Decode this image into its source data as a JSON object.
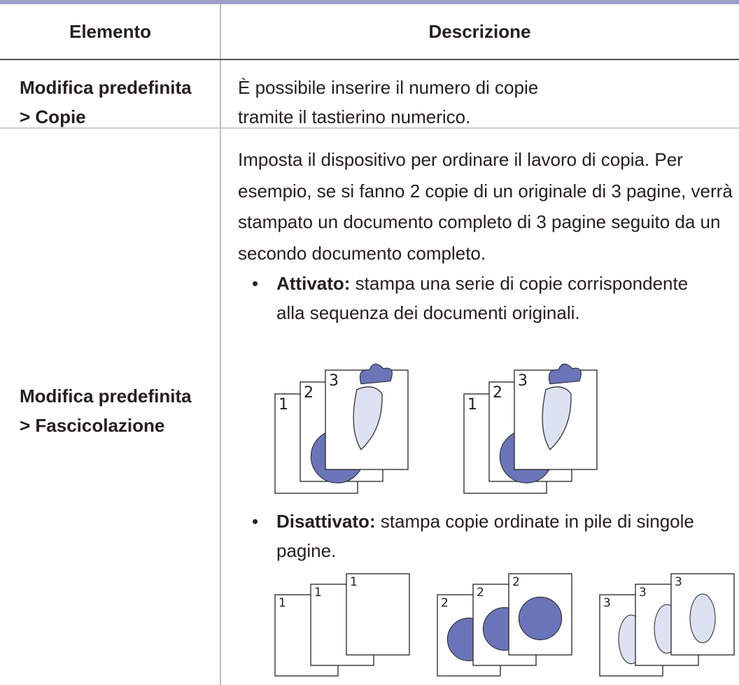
{
  "table": {
    "headers": [
      "Elemento",
      "Descrizione"
    ],
    "rows": [
      {
        "item": [
          "Modifica predefinita",
          "> Copie"
        ],
        "description": "È possibile inserire il numero di copie tramite il tastierino numerico."
      },
      {
        "item": [
          "Modifica predefinita",
          "> Fascicolazione"
        ],
        "description": "Imposta il dispositivo per ordinare il lavoro di copia. Per esempio, se si fanno 2 copie di un originale di 3 pagine, verrà stampato un documento completo di 3 pagine seguito da un secondo documento completo.",
        "bullets": [
          {
            "term": "Attivato:",
            "text": "stampa una serie di copie corrispondente alla sequenza dei documenti originali.",
            "illustration": [
              [
                "1",
                "2",
                "3"
              ],
              [
                "1",
                "2",
                "3"
              ]
            ]
          },
          {
            "term": "Disattivato:",
            "text": "stampa copie ordinate in pile di singole pagine.",
            "illustration": [
              [
                "1",
                "1",
                "1"
              ],
              [
                "2",
                "2",
                "2"
              ],
              [
                "3",
                "3",
                "3"
              ]
            ]
          }
        ]
      }
    ]
  }
}
